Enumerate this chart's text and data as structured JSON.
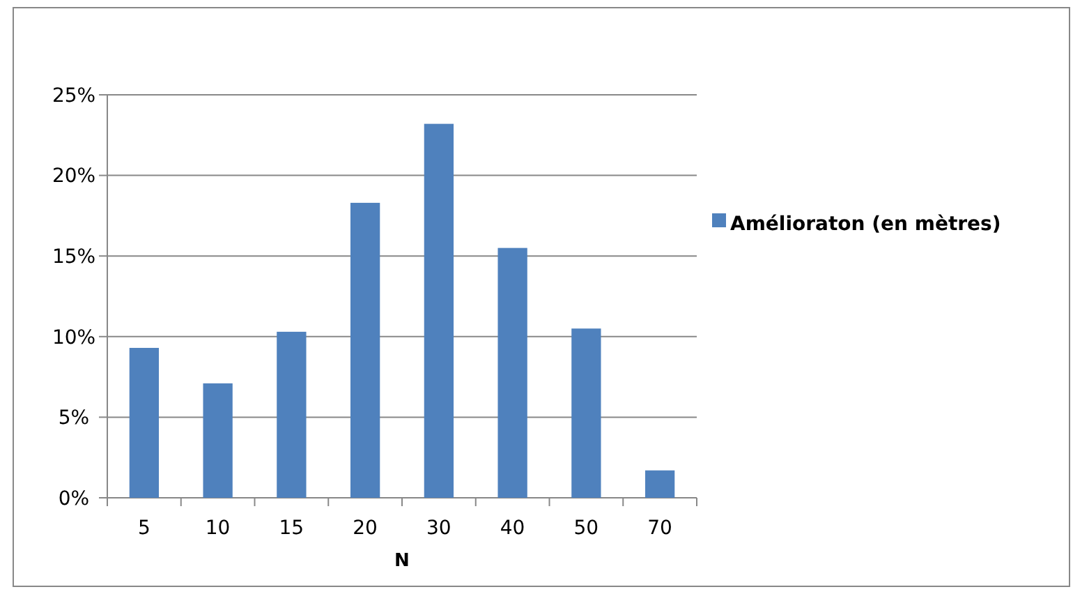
{
  "chart_data": {
    "type": "bar",
    "xlabel": "N",
    "categories": [
      "5",
      "10",
      "15",
      "20",
      "30",
      "40",
      "50",
      "70"
    ],
    "series": [
      {
        "name": "Amélioraton (en mètres)",
        "color": "#4f81bd",
        "values": [
          9.3,
          7.1,
          10.3,
          18.3,
          23.2,
          15.5,
          10.5,
          1.7
        ]
      }
    ],
    "ylim": [
      0,
      25
    ],
    "yticks": [
      {
        "value": 0,
        "label": "0%"
      },
      {
        "value": 5,
        "label": "5%"
      },
      {
        "value": 10,
        "label": "10%"
      },
      {
        "value": 15,
        "label": "15%"
      },
      {
        "value": 20,
        "label": "20%"
      },
      {
        "value": 25,
        "label": "25%"
      }
    ],
    "grid": "y",
    "legend": "right"
  }
}
